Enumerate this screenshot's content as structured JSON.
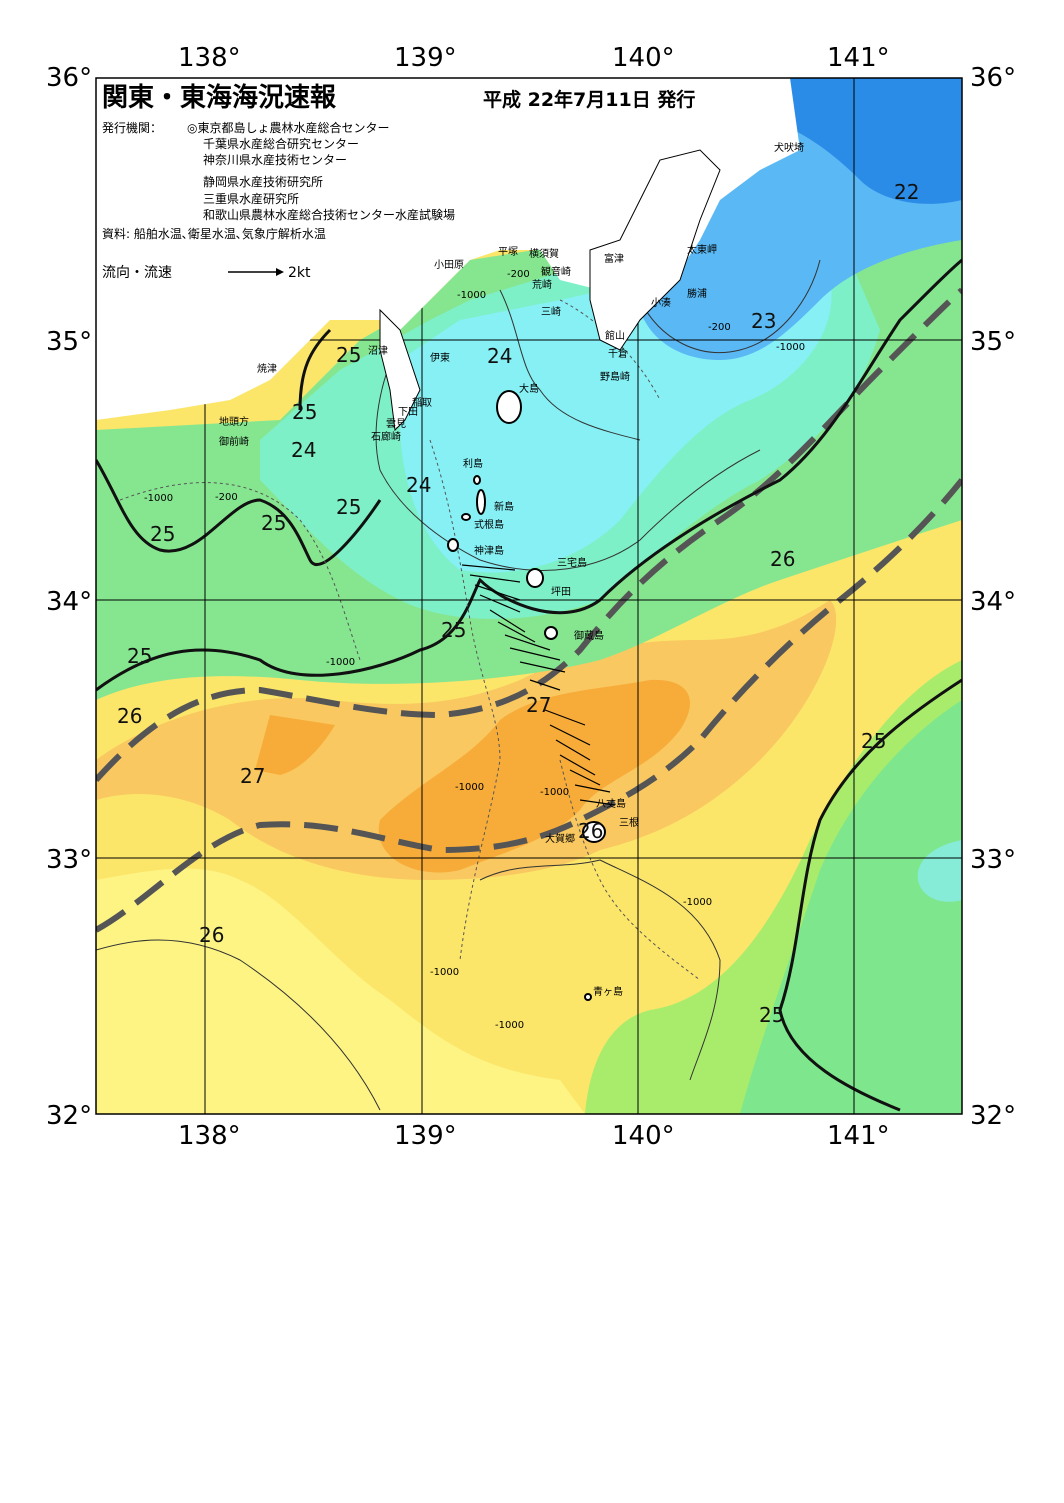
{
  "header": {
    "title": "関東・東海海況速報",
    "date": "平成 22年7月11日 発行",
    "issuer_label": "発行機関：",
    "issuers": [
      "◎東京都島しょ農林水産総合センター",
      "千葉県水産総合研究センター",
      "神奈川県水産技術センター",
      "静岡県水産技術研究所",
      "三重県水産研究所",
      "和歌山県農林水産総合技術センター水産試験場"
    ],
    "source": "資料: 船舶水温､衛星水温､気象庁解析水温"
  },
  "legend": {
    "label": "流向・流速",
    "scale_label": "2kt"
  },
  "axes": {
    "longitudes": [
      "138°",
      "139°",
      "140°",
      "141°"
    ],
    "latitudes": [
      "36°",
      "35°",
      "34°",
      "33°",
      "32°"
    ]
  },
  "sst_labels": [
    "22",
    "23",
    "24",
    "24",
    "24",
    "25",
    "25",
    "25",
    "25",
    "25",
    "25",
    "25",
    "25",
    "25",
    "26",
    "26",
    "26",
    "26",
    "27",
    "27"
  ],
  "place_names": [
    "犬吠埼",
    "太東岬",
    "勝浦",
    "小湊",
    "館山",
    "千倉",
    "野島崎",
    "富津",
    "横須賀",
    "観音崎",
    "荒崎",
    "三崎",
    "平塚",
    "小田原",
    "沼津",
    "伊東",
    "稲取",
    "下田",
    "雲見",
    "石廊崎",
    "焼津",
    "地頭方",
    "御前崎",
    "大島",
    "利島",
    "新島",
    "式根島",
    "神津島",
    "三宅島",
    "坪田",
    "御蔵島",
    "八丈島",
    "三根",
    "大賀郷",
    "青ヶ島"
  ],
  "depth_labels": [
    "-1000",
    "-200"
  ],
  "colors": {
    "sst_22": "#2b8ce8",
    "sst_23": "#5ab8f4",
    "sst_24": "#86ecf4",
    "sst_25": "#7ee68c",
    "sst_26": "#fbe66a",
    "sst_27": "#f7b23c",
    "land": "#ffffff",
    "kuroshio_axis": "#555555"
  }
}
